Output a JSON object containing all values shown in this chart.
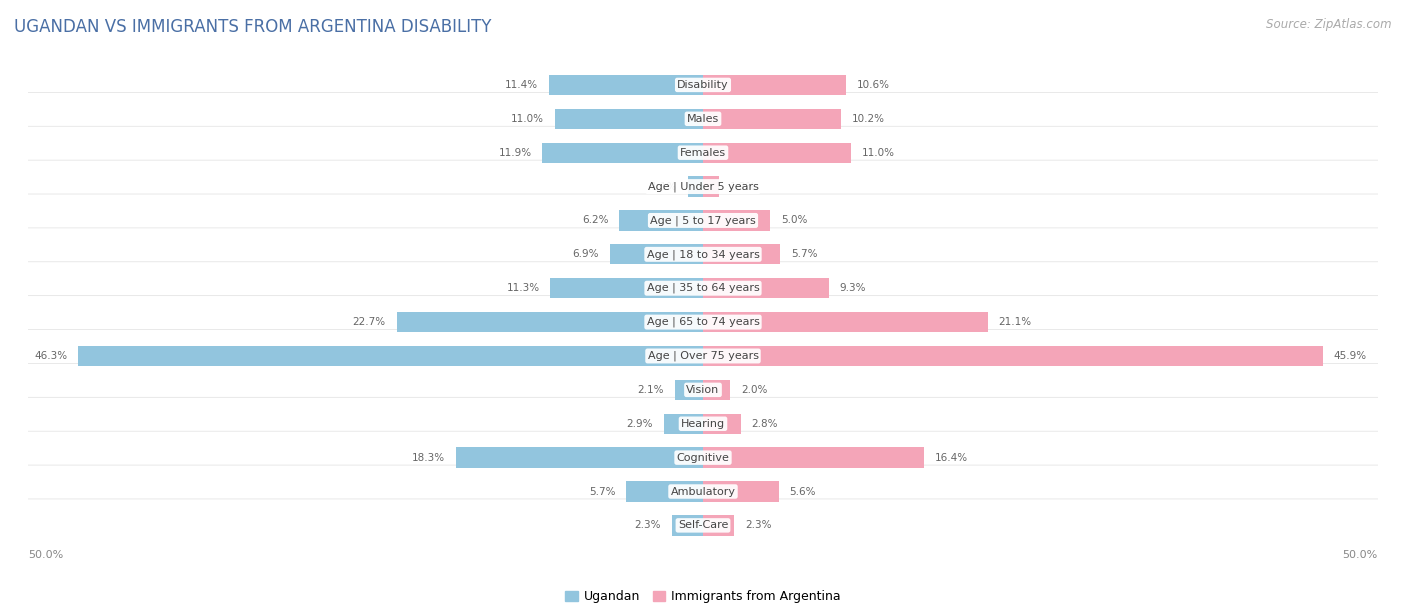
{
  "title": "UGANDAN VS IMMIGRANTS FROM ARGENTINA DISABILITY",
  "source": "Source: ZipAtlas.com",
  "categories": [
    "Disability",
    "Males",
    "Females",
    "Age | Under 5 years",
    "Age | 5 to 17 years",
    "Age | 18 to 34 years",
    "Age | 35 to 64 years",
    "Age | 65 to 74 years",
    "Age | Over 75 years",
    "Vision",
    "Hearing",
    "Cognitive",
    "Ambulatory",
    "Self-Care"
  ],
  "ugandan": [
    11.4,
    11.0,
    11.9,
    1.1,
    6.2,
    6.9,
    11.3,
    22.7,
    46.3,
    2.1,
    2.9,
    18.3,
    5.7,
    2.3
  ],
  "argentina": [
    10.6,
    10.2,
    11.0,
    1.2,
    5.0,
    5.7,
    9.3,
    21.1,
    45.9,
    2.0,
    2.8,
    16.4,
    5.6,
    2.3
  ],
  "ugandan_color": "#92c5de",
  "argentina_color": "#f4a5b8",
  "ugandan_label": "Ugandan",
  "argentina_label": "Immigrants from Argentina",
  "axis_limit": 50.0,
  "background_color": "#ffffff",
  "row_bg_color": "#f0f0f0",
  "bar_bg_color": "#ffffff",
  "title_fontsize": 12,
  "source_fontsize": 8.5,
  "cat_fontsize": 8,
  "value_fontsize": 7.5,
  "legend_fontsize": 9,
  "title_color": "#4a6fa5",
  "value_color": "#666666",
  "cat_color": "#444444"
}
